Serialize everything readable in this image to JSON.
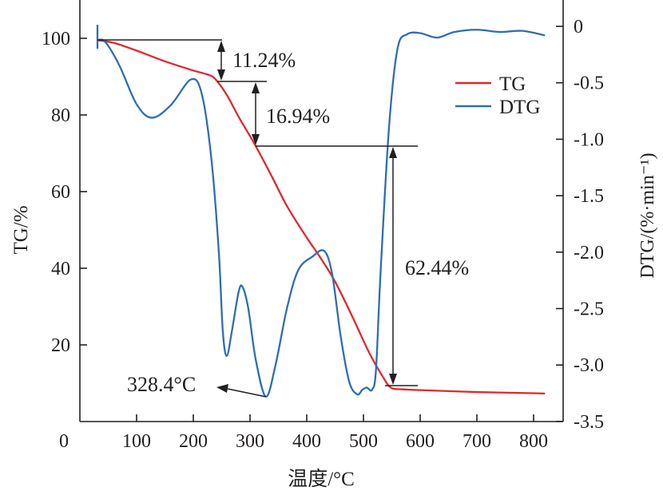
{
  "chart_data": {
    "type": "line",
    "title": "",
    "xlabel": "温度/°C",
    "ylabel_left": "TG/%",
    "ylabel_right": "DTG/(%·min⁻¹)",
    "xlim": [
      0,
      852
    ],
    "ylim_left": [
      0,
      110
    ],
    "ylim_right": [
      -3.5,
      0.23
    ],
    "x_ticks": [
      100,
      200,
      300,
      400,
      500,
      600,
      700,
      800
    ],
    "x_tick_labels": [
      "100",
      "200",
      "300",
      "400",
      "500",
      "600",
      "700",
      "800"
    ],
    "origin_label": "0",
    "y_left_ticks": [
      20,
      40,
      60,
      80,
      100
    ],
    "y_left_tick_labels": [
      "20",
      "40",
      "60",
      "80",
      "100"
    ],
    "y_right_ticks": [
      0,
      -0.5,
      -1.0,
      -1.5,
      -2.0,
      -2.5,
      -3.0,
      -3.5
    ],
    "y_right_tick_labels": [
      "0",
      "-0.5",
      "-1.0",
      "-1.5",
      "-2.0",
      "-2.5",
      "-3.0",
      "-3.5"
    ],
    "legend": {
      "placement": "top-right",
      "entries": [
        "TG",
        "DTG"
      ]
    },
    "series": [
      {
        "name": "TG",
        "axis": "left",
        "color": "#e0282e",
        "x": [
          31,
          60,
          100,
          150,
          200,
          230,
          242,
          260,
          280,
          310,
          340,
          366,
          400,
          423,
          450,
          480,
          510,
          535,
          549,
          570,
          600,
          700,
          800,
          820
        ],
        "y": [
          99.5,
          98.8,
          96.8,
          94.0,
          91.6,
          90.3,
          88.8,
          85.0,
          79.5,
          71.9,
          63.5,
          56.0,
          48.0,
          43.0,
          36.5,
          27.5,
          18.0,
          11.5,
          8.8,
          8.4,
          8.2,
          7.7,
          7.4,
          7.3
        ]
      },
      {
        "name": "DTG",
        "axis": "right",
        "color": "#2f6db5",
        "x": [
          31,
          45,
          70,
          100,
          127,
          160,
          196,
          215,
          232,
          245,
          252,
          259,
          268,
          280,
          287,
          297,
          310,
          328,
          345,
          365,
          385,
          410,
          431,
          445,
          460,
          475,
          489,
          498,
          506,
          515,
          522,
          530,
          545,
          560,
          577,
          600,
          630,
          660,
          700,
          740,
          780,
          820
        ],
        "y": [
          -0.12,
          -0.14,
          -0.35,
          -0.69,
          -0.81,
          -0.7,
          -0.47,
          -0.6,
          -1.18,
          -2.0,
          -2.7,
          -2.92,
          -2.7,
          -2.35,
          -2.31,
          -2.5,
          -2.95,
          -3.28,
          -3.0,
          -2.5,
          -2.16,
          -2.04,
          -1.99,
          -2.2,
          -2.75,
          -3.15,
          -3.26,
          -3.22,
          -3.2,
          -3.22,
          -3.05,
          -2.2,
          -0.9,
          -0.2,
          -0.07,
          -0.06,
          -0.1,
          -0.05,
          -0.03,
          -0.05,
          -0.04,
          -0.08
        ]
      }
    ],
    "annotations": [
      {
        "text": "11.24%",
        "from_tg": 99.5,
        "to_tg": 88.8
      },
      {
        "text": "16.94%",
        "from_tg": 88.8,
        "to_tg": 71.9
      },
      {
        "text": "62.44%",
        "from_tg": 71.9,
        "to_tg": 9.5
      },
      {
        "text": "328.4°C",
        "points_to": {
          "x": 328.4,
          "dtg": -3.28
        }
      }
    ]
  }
}
